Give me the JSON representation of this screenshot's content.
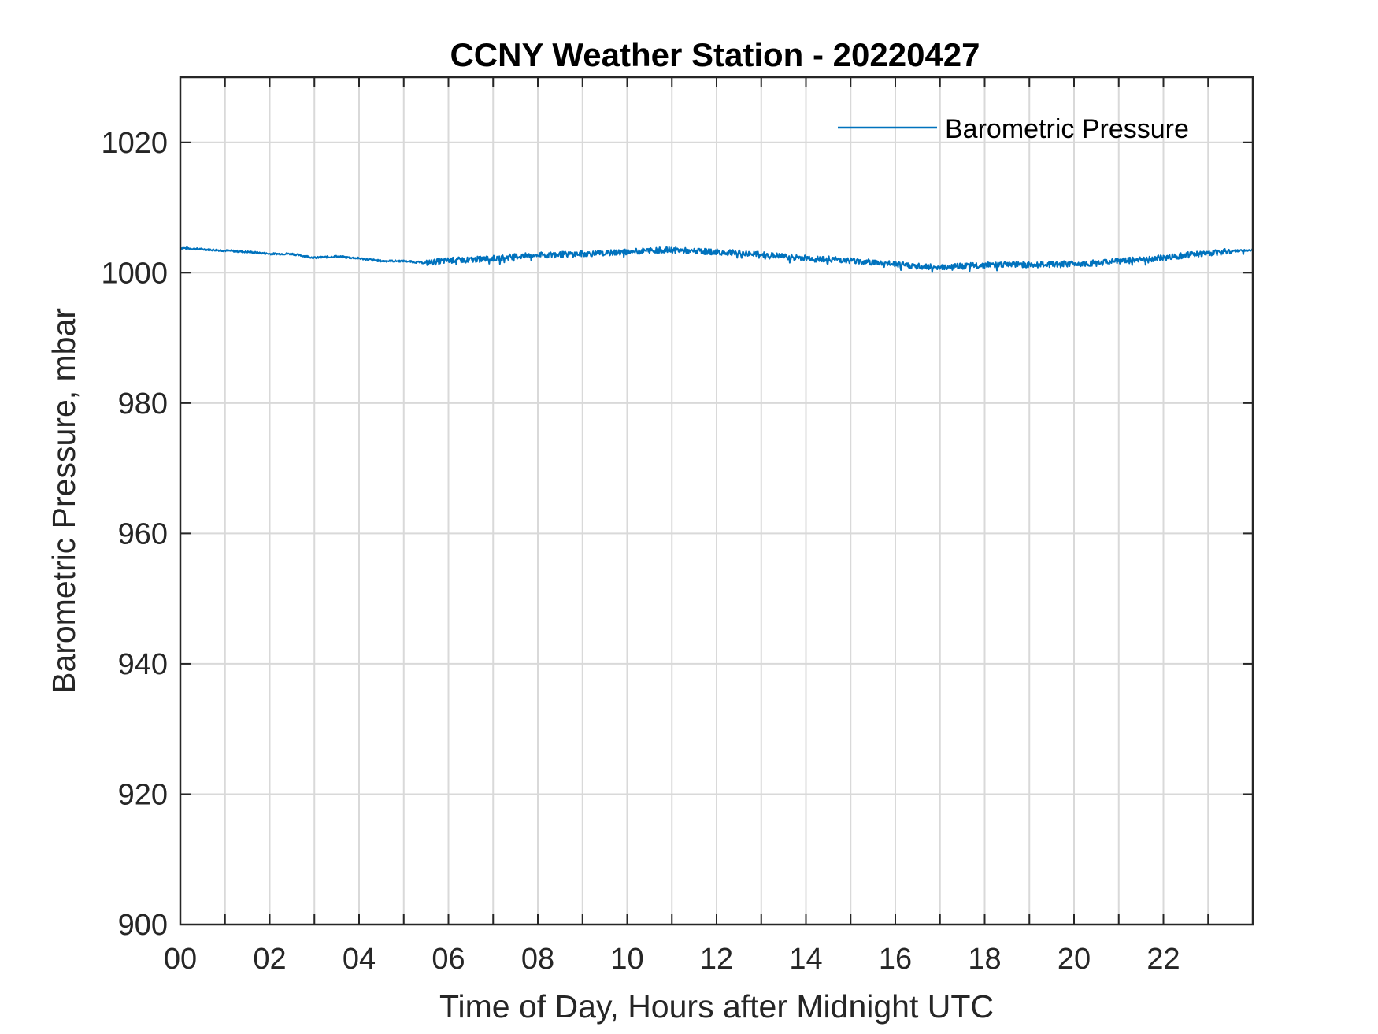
{
  "chart_data": {
    "type": "line",
    "title": "CCNY Weather Station - 20220427",
    "xlabel": "Time of Day, Hours after Midnight UTC",
    "ylabel": "Barometric Pressure, mbar",
    "xlim": [
      0,
      24
    ],
    "ylim": [
      900,
      1030
    ],
    "x_tick_values": [
      0,
      2,
      4,
      6,
      8,
      10,
      12,
      14,
      16,
      18,
      20,
      22
    ],
    "x_tick_labels": [
      "00",
      "02",
      "04",
      "06",
      "08",
      "10",
      "12",
      "14",
      "16",
      "18",
      "20",
      "22"
    ],
    "x_grid_step": 1,
    "y_tick_values": [
      900,
      920,
      940,
      960,
      980,
      1000,
      1020
    ],
    "y_tick_labels": [
      "900",
      "920",
      "940",
      "960",
      "980",
      "1000",
      "1020"
    ],
    "grid": true,
    "legend_position": "top-right",
    "series": [
      {
        "name": "Barometric Pressure",
        "color": "#0072BD",
        "x": [
          0,
          0.5,
          1,
          1.5,
          2,
          2.5,
          3,
          3.5,
          4,
          4.5,
          5,
          5.5,
          6,
          6.5,
          7,
          7.5,
          8,
          8.5,
          9,
          9.5,
          10,
          10.5,
          11,
          11.5,
          12,
          12.5,
          13,
          13.5,
          14,
          14.5,
          15,
          15.5,
          16,
          16.5,
          17,
          17.5,
          18,
          18.5,
          19,
          19.5,
          20,
          20.5,
          21,
          21.5,
          22,
          22.5,
          23,
          23.5,
          24
        ],
        "y": [
          1003.8,
          1003.6,
          1003.4,
          1003.2,
          1002.9,
          1002.9,
          1002.3,
          1002.5,
          1002.2,
          1001.8,
          1001.8,
          1001.5,
          1001.9,
          1002.0,
          1002.2,
          1002.5,
          1002.7,
          1002.8,
          1002.9,
          1003.0,
          1003.2,
          1003.4,
          1003.5,
          1003.3,
          1003.2,
          1003.0,
          1002.8,
          1002.5,
          1002.3,
          1002.1,
          1001.9,
          1001.6,
          1001.3,
          1001.0,
          1000.9,
          1001.0,
          1001.2,
          1001.3,
          1001.2,
          1001.3,
          1001.4,
          1001.5,
          1001.8,
          1002.0,
          1002.3,
          1002.7,
          1003.0,
          1003.3,
          1003.5
        ]
      }
    ]
  }
}
